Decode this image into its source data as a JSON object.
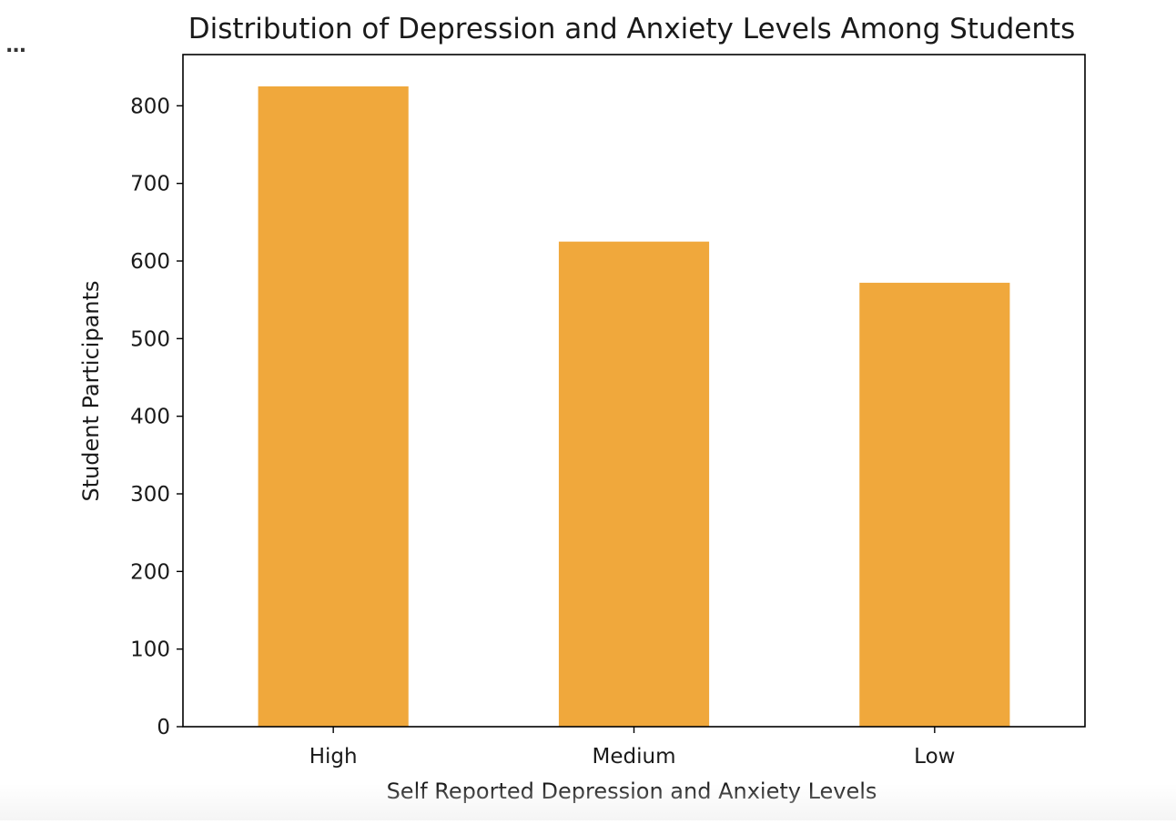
{
  "cell": {
    "ellipsis": "..."
  },
  "chart_data": {
    "type": "bar",
    "title": "Distribution of Depression and Anxiety Levels Among Students",
    "xlabel": "Self Reported Depression and Anxiety Levels",
    "ylabel": "Student Participants",
    "categories": [
      "High",
      "Medium",
      "Low"
    ],
    "values": [
      825,
      625,
      572
    ],
    "ylim": [
      0,
      866
    ],
    "yticks": [
      0,
      100,
      200,
      300,
      400,
      500,
      600,
      700,
      800
    ],
    "bar_color": "#f0a83c",
    "grid": false,
    "legend": "none"
  }
}
